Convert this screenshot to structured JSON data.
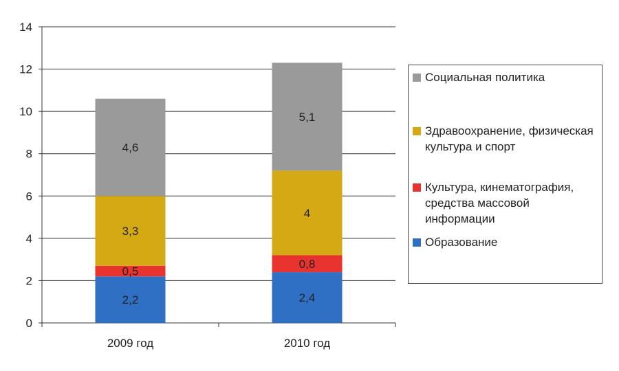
{
  "chart_data": {
    "type": "bar",
    "stacked": true,
    "categories": [
      "2009 год",
      "2010 год"
    ],
    "series": [
      {
        "name": "Образование",
        "color": "#2F6FC4",
        "values": [
          2.2,
          2.4
        ],
        "labels": [
          "2,2",
          "2,4"
        ]
      },
      {
        "name": "Культура, кинематография, средства массовой информации",
        "color": "#E8332E",
        "values": [
          0.5,
          0.8
        ],
        "labels": [
          "0,5",
          "0,8"
        ]
      },
      {
        "name": "Здравоохранение, физическая культура и спорт",
        "color": "#D4A914",
        "values": [
          3.3,
          4
        ],
        "labels": [
          "3,3",
          "4"
        ]
      },
      {
        "name": "Социальная политика",
        "color": "#9A9A9A",
        "values": [
          4.6,
          5.1
        ],
        "labels": [
          "4,6",
          "5,1"
        ]
      }
    ],
    "ylim": [
      0,
      14
    ],
    "yticks": [
      0,
      2,
      4,
      6,
      8,
      10,
      12,
      14
    ],
    "grid": true,
    "legend_position": "right",
    "title": "",
    "xlabel": "",
    "ylabel": ""
  },
  "legend": {
    "items": [
      {
        "label": "Социальная политика",
        "color": "#9A9A9A"
      },
      {
        "label": "Здравоохранение, физическая культура и спорт",
        "color": "#D4A914"
      },
      {
        "label": "Культура, кинематография, средства массовой информации",
        "color": "#E8332E"
      },
      {
        "label": "Образование",
        "color": "#2F6FC4"
      }
    ]
  }
}
